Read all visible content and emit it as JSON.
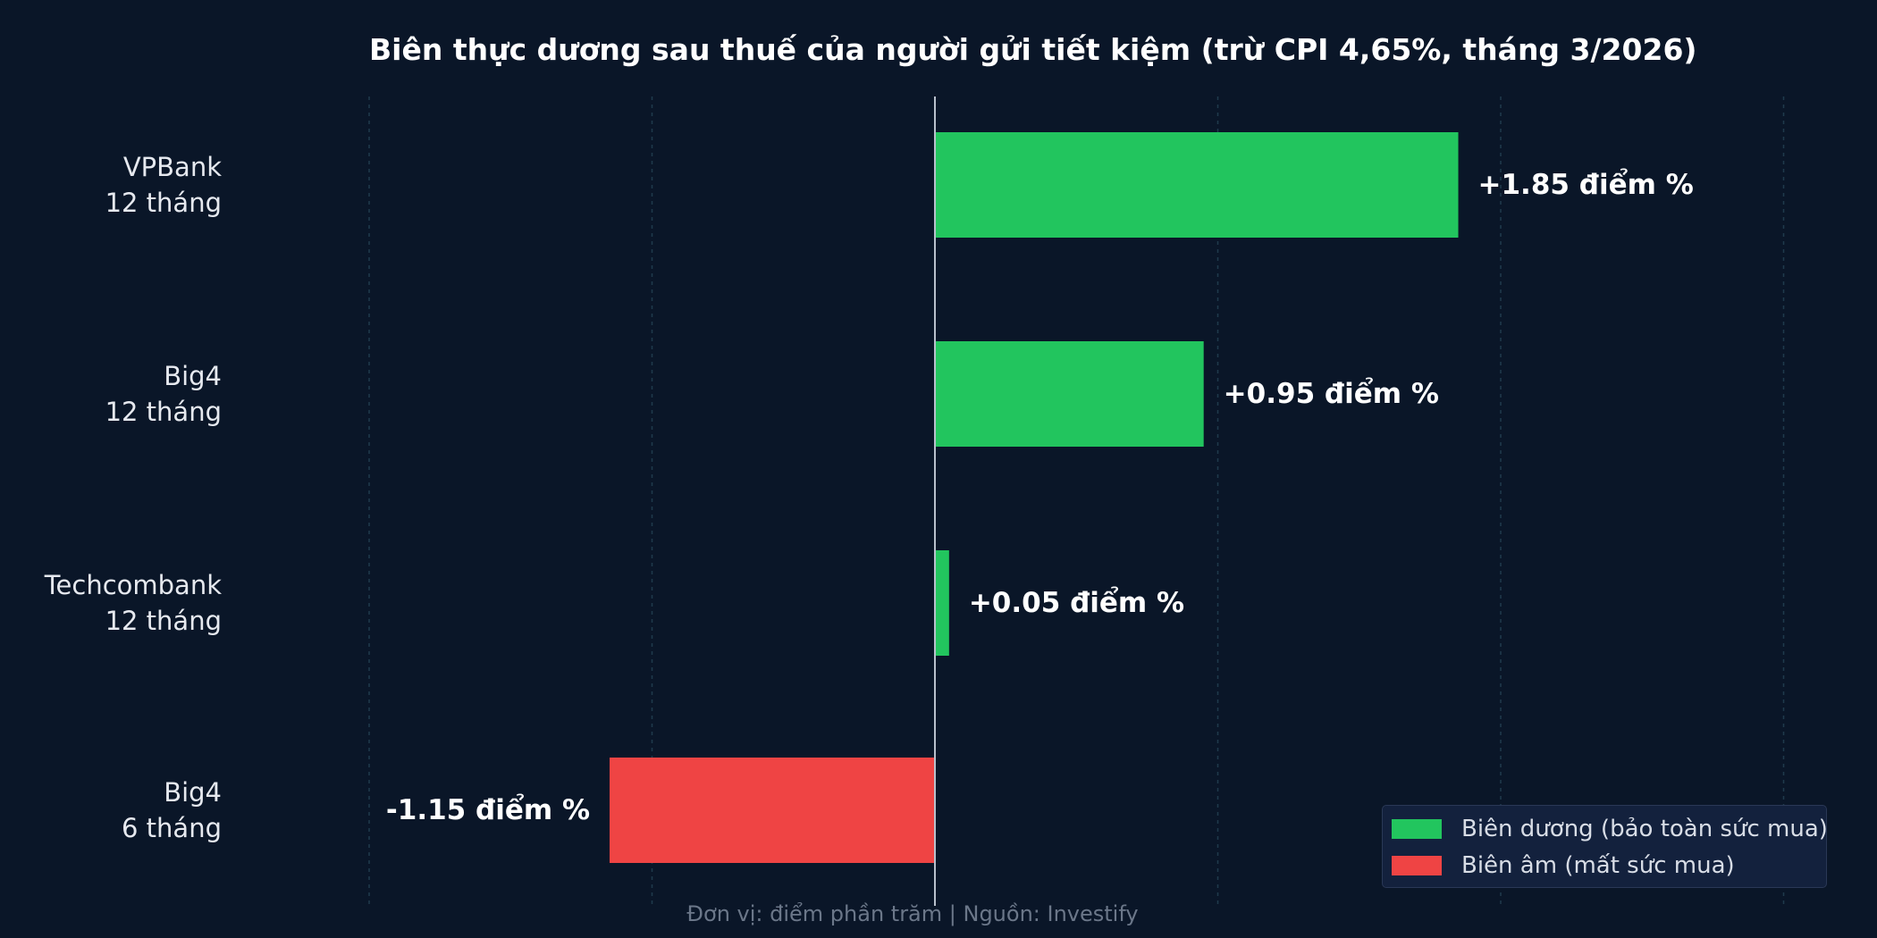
{
  "chart_data": {
    "type": "bar",
    "orientation": "horizontal",
    "title": "Biên thực dương sau thuế của người gửi tiết kiệm (trừ CPI 4,65%, tháng 3/2026)",
    "categories": [
      {
        "line1": "VPBank",
        "line2": "12 tháng"
      },
      {
        "line1": "Big4",
        "line2": "12 tháng"
      },
      {
        "line1": "Techcombank",
        "line2": "12 tháng"
      },
      {
        "line1": "Big4",
        "line2": "6 tháng"
      }
    ],
    "values": [
      1.85,
      0.95,
      0.05,
      -1.15
    ],
    "value_labels": [
      "+1.85 điểm %",
      "+0.95 điểm %",
      "+0.05 điểm %",
      "-1.15 điểm %"
    ],
    "xlim": [
      -2.0,
      3.0
    ],
    "grid": true,
    "legend_position": "bottom-right",
    "legend": [
      {
        "label": "Biên dương (bảo toàn sức mua)",
        "color": "#22c55e"
      },
      {
        "label": "Biên âm (mất sức mua)",
        "color": "#ef4444"
      }
    ],
    "colors": {
      "positive": "#22c55e",
      "negative": "#ef4444"
    },
    "footer": "Đơn vị: điểm phần trăm  |  Nguồn: Investify"
  }
}
